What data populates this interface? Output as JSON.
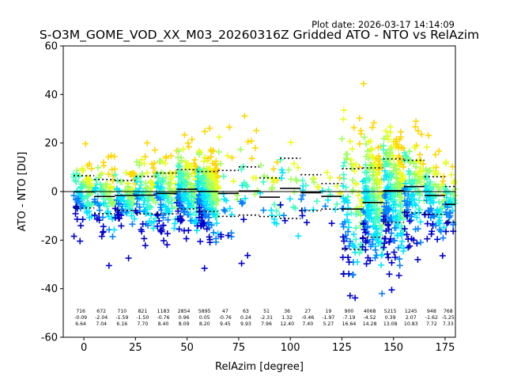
{
  "plot_date": "Plot date: 2026-03-17 14:14:09",
  "chart_data": {
    "type": "scatter",
    "title": "S-O3M_GOME_VOD_XX_M03_20260316Z Gridded ATO - NTO vs RelAzim",
    "xlabel": "RelAzim [degree]",
    "ylabel": "ATO - NTO [DU]",
    "xlim": [
      -10,
      180
    ],
    "ylim": [
      -60,
      60
    ],
    "xticks": [
      0,
      25,
      50,
      75,
      100,
      125,
      150,
      175
    ],
    "yticks": [
      -60,
      -40,
      -20,
      0,
      20,
      40,
      60
    ],
    "marker": "+",
    "colormap": [
      "#0000cd",
      "#0080ff",
      "#00e5ff",
      "#40ffc0",
      "#a0ff60",
      "#e8ff20",
      "#ffd700"
    ],
    "bins": [
      {
        "x": 0,
        "count": "716",
        "mean": "-0.09",
        "std": "6.64"
      },
      {
        "x": 10,
        "count": "672",
        "mean": "-2.04",
        "std": "7.04"
      },
      {
        "x": 20,
        "count": "710",
        "mean": "-1.59",
        "std": "6.16"
      },
      {
        "x": 30,
        "count": "821",
        "mean": "-1.50",
        "std": "7.70"
      },
      {
        "x": 40,
        "count": "1183",
        "mean": "-0.76",
        "std": "8.40"
      },
      {
        "x": 50,
        "count": "2854",
        "mean": "0.96",
        "std": "8.09"
      },
      {
        "x": 60,
        "count": "5895",
        "mean": "0.05",
        "std": "8.20"
      },
      {
        "x": 70,
        "count": "47",
        "mean": "-0.76",
        "std": "9.45"
      },
      {
        "x": 80,
        "count": "63",
        "mean": "0.24",
        "std": "9.93"
      },
      {
        "x": 90,
        "count": "51",
        "mean": "-2.31",
        "std": "7.96"
      },
      {
        "x": 100,
        "count": "36",
        "mean": "1.32",
        "std": "12.40"
      },
      {
        "x": 110,
        "count": "27",
        "mean": "-0.46",
        "std": "7.40"
      },
      {
        "x": 120,
        "count": "19",
        "mean": "-1.97",
        "std": "5.27"
      },
      {
        "x": 130,
        "count": "900",
        "mean": "-7.19",
        "std": "16.64"
      },
      {
        "x": 140,
        "count": "4068",
        "mean": "-4.52",
        "std": "14.28"
      },
      {
        "x": 150,
        "count": "5215",
        "mean": "0.39",
        "std": "13.08"
      },
      {
        "x": 160,
        "count": "1245",
        "mean": "2.07",
        "std": "10.83"
      },
      {
        "x": 170,
        "count": "948",
        "mean": "-1.62",
        "std": "7.72"
      },
      {
        "x": 180,
        "count": "768",
        "mean": "-5.25",
        "std": "7.33"
      }
    ]
  }
}
